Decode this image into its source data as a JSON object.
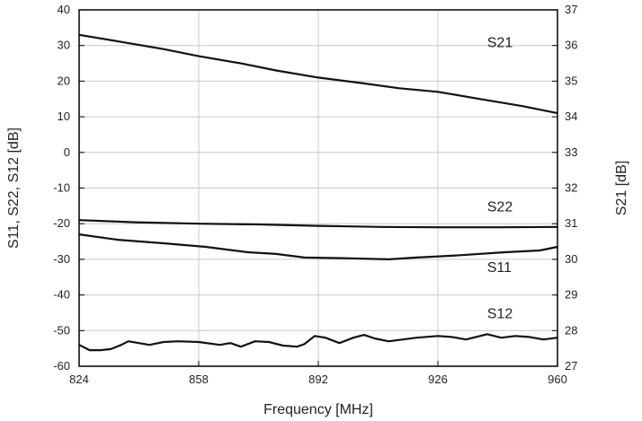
{
  "chart_data": {
    "type": "line",
    "title": "",
    "xlabel": "Frequency [MHz]",
    "ylabel_left": "S11, S22, S12 [dB]",
    "ylabel_right": "S21 [dB]",
    "xlim": [
      824,
      960
    ],
    "ylim_left": [
      -60,
      40
    ],
    "ylim_right": [
      27,
      37
    ],
    "x_ticks": [
      824,
      858,
      892,
      926,
      960
    ],
    "y_ticks_left": [
      -60,
      -50,
      -40,
      -30,
      -20,
      -10,
      0,
      10,
      20,
      30,
      40
    ],
    "y_ticks_right": [
      27,
      28,
      29,
      30,
      31,
      32,
      33,
      34,
      35,
      36,
      37
    ],
    "grid": true,
    "line_color": "#111111",
    "series": [
      {
        "name": "S21",
        "axis": "right",
        "label_at": [
          940,
          35.95
        ],
        "points": [
          [
            824,
            36.3
          ],
          [
            836,
            36.1
          ],
          [
            848,
            35.9
          ],
          [
            858,
            35.7
          ],
          [
            870,
            35.5
          ],
          [
            880,
            35.3
          ],
          [
            892,
            35.1
          ],
          [
            904,
            34.95
          ],
          [
            915,
            34.8
          ],
          [
            926,
            34.7
          ],
          [
            938,
            34.5
          ],
          [
            950,
            34.3
          ],
          [
            960,
            34.1
          ]
        ]
      },
      {
        "name": "S22",
        "axis": "left",
        "label_at": [
          940,
          -16.5
        ],
        "points": [
          [
            824,
            -19
          ],
          [
            840,
            -19.6
          ],
          [
            858,
            -20
          ],
          [
            875,
            -20.2
          ],
          [
            892,
            -20.6
          ],
          [
            910,
            -20.9
          ],
          [
            926,
            -21
          ],
          [
            945,
            -21
          ],
          [
            960,
            -20.9
          ]
        ]
      },
      {
        "name": "S11",
        "axis": "left",
        "label_at": [
          940,
          -33.5
        ],
        "points": [
          [
            824,
            -23
          ],
          [
            835,
            -24.5
          ],
          [
            848,
            -25.5
          ],
          [
            860,
            -26.5
          ],
          [
            872,
            -28
          ],
          [
            880,
            -28.5
          ],
          [
            888,
            -29.5
          ],
          [
            900,
            -29.7
          ],
          [
            912,
            -30
          ],
          [
            920,
            -29.5
          ],
          [
            930,
            -29
          ],
          [
            945,
            -28
          ],
          [
            955,
            -27.5
          ],
          [
            960,
            -26.5
          ]
        ]
      },
      {
        "name": "S12",
        "axis": "left",
        "label_at": [
          940,
          -46.5
        ],
        "points": [
          [
            824,
            -54
          ],
          [
            827,
            -55.5
          ],
          [
            830,
            -55.5
          ],
          [
            833,
            -55.2
          ],
          [
            836,
            -54
          ],
          [
            838,
            -53
          ],
          [
            841,
            -53.5
          ],
          [
            844,
            -54
          ],
          [
            848,
            -53.2
          ],
          [
            852,
            -53
          ],
          [
            858,
            -53.2
          ],
          [
            864,
            -54
          ],
          [
            867,
            -53.5
          ],
          [
            870,
            -54.5
          ],
          [
            874,
            -53
          ],
          [
            878,
            -53.2
          ],
          [
            882,
            -54.2
          ],
          [
            886,
            -54.5
          ],
          [
            888,
            -53.8
          ],
          [
            891,
            -51.5
          ],
          [
            894,
            -52
          ],
          [
            898,
            -53.5
          ],
          [
            902,
            -52
          ],
          [
            905,
            -51.2
          ],
          [
            908,
            -52.2
          ],
          [
            912,
            -53
          ],
          [
            916,
            -52.5
          ],
          [
            920,
            -52
          ],
          [
            926,
            -51.5
          ],
          [
            930,
            -51.8
          ],
          [
            934,
            -52.5
          ],
          [
            940,
            -51
          ],
          [
            944,
            -52
          ],
          [
            948,
            -51.5
          ],
          [
            952,
            -51.8
          ],
          [
            956,
            -52.5
          ],
          [
            960,
            -52
          ]
        ]
      }
    ]
  }
}
